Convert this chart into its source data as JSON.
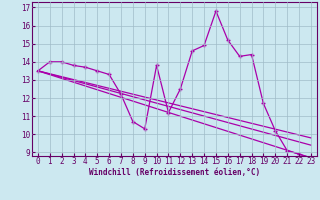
{
  "xlabel": "Windchill (Refroidissement éolien,°C)",
  "bg_color": "#cce8f0",
  "grid_color": "#a0bcc8",
  "line_color": "#aa00aa",
  "spine_color": "#660066",
  "ylim": [
    8.8,
    17.3
  ],
  "xlim": [
    -0.5,
    23.5
  ],
  "yticks": [
    9,
    10,
    11,
    12,
    13,
    14,
    15,
    16,
    17
  ],
  "xticks": [
    0,
    1,
    2,
    3,
    4,
    5,
    6,
    7,
    8,
    9,
    10,
    11,
    12,
    13,
    14,
    15,
    16,
    17,
    18,
    19,
    20,
    21,
    22,
    23
  ],
  "series1_x": [
    0,
    1,
    2,
    3,
    4,
    5,
    6,
    7,
    8,
    9,
    10,
    11,
    12,
    13,
    14,
    15,
    16,
    17,
    18,
    19,
    20,
    21,
    22,
    23
  ],
  "series1_y": [
    13.5,
    14.0,
    14.0,
    13.8,
    13.7,
    13.5,
    13.3,
    12.2,
    10.7,
    10.3,
    13.8,
    11.2,
    12.5,
    14.6,
    14.9,
    16.8,
    15.2,
    14.3,
    14.4,
    11.7,
    10.2,
    9.1,
    8.9,
    8.7
  ],
  "series2_x": [
    0,
    23
  ],
  "series2_y": [
    13.5,
    9.4
  ],
  "series3_x": [
    0,
    23
  ],
  "series3_y": [
    13.5,
    8.7
  ],
  "series4_x": [
    0,
    23
  ],
  "series4_y": [
    13.5,
    9.8
  ],
  "tick_fontsize": 5.5,
  "xlabel_fontsize": 5.5
}
